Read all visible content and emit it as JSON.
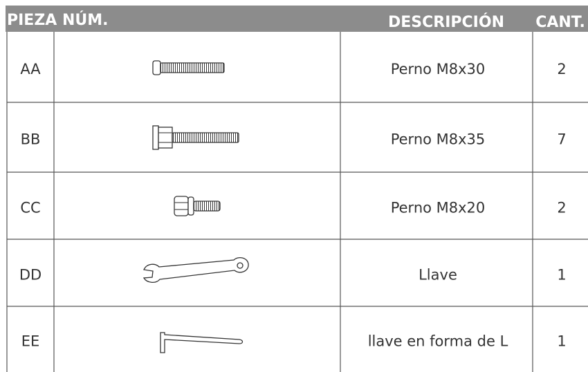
{
  "header": {
    "part": "PIEZA NÚM.",
    "description": "DESCRIPCIÓN",
    "quantity": "CANT."
  },
  "rows": [
    {
      "id": "AA",
      "description": "Perno M8x30",
      "quantity": 2
    },
    {
      "id": "BB",
      "description": "Perno M8x35",
      "quantity": 7
    },
    {
      "id": "CC",
      "description": "Perno M8x20",
      "quantity": 2
    },
    {
      "id": "DD",
      "description": "Llave",
      "quantity": 1
    },
    {
      "id": "EE",
      "description": "llave en forma de L",
      "quantity": 1
    }
  ]
}
